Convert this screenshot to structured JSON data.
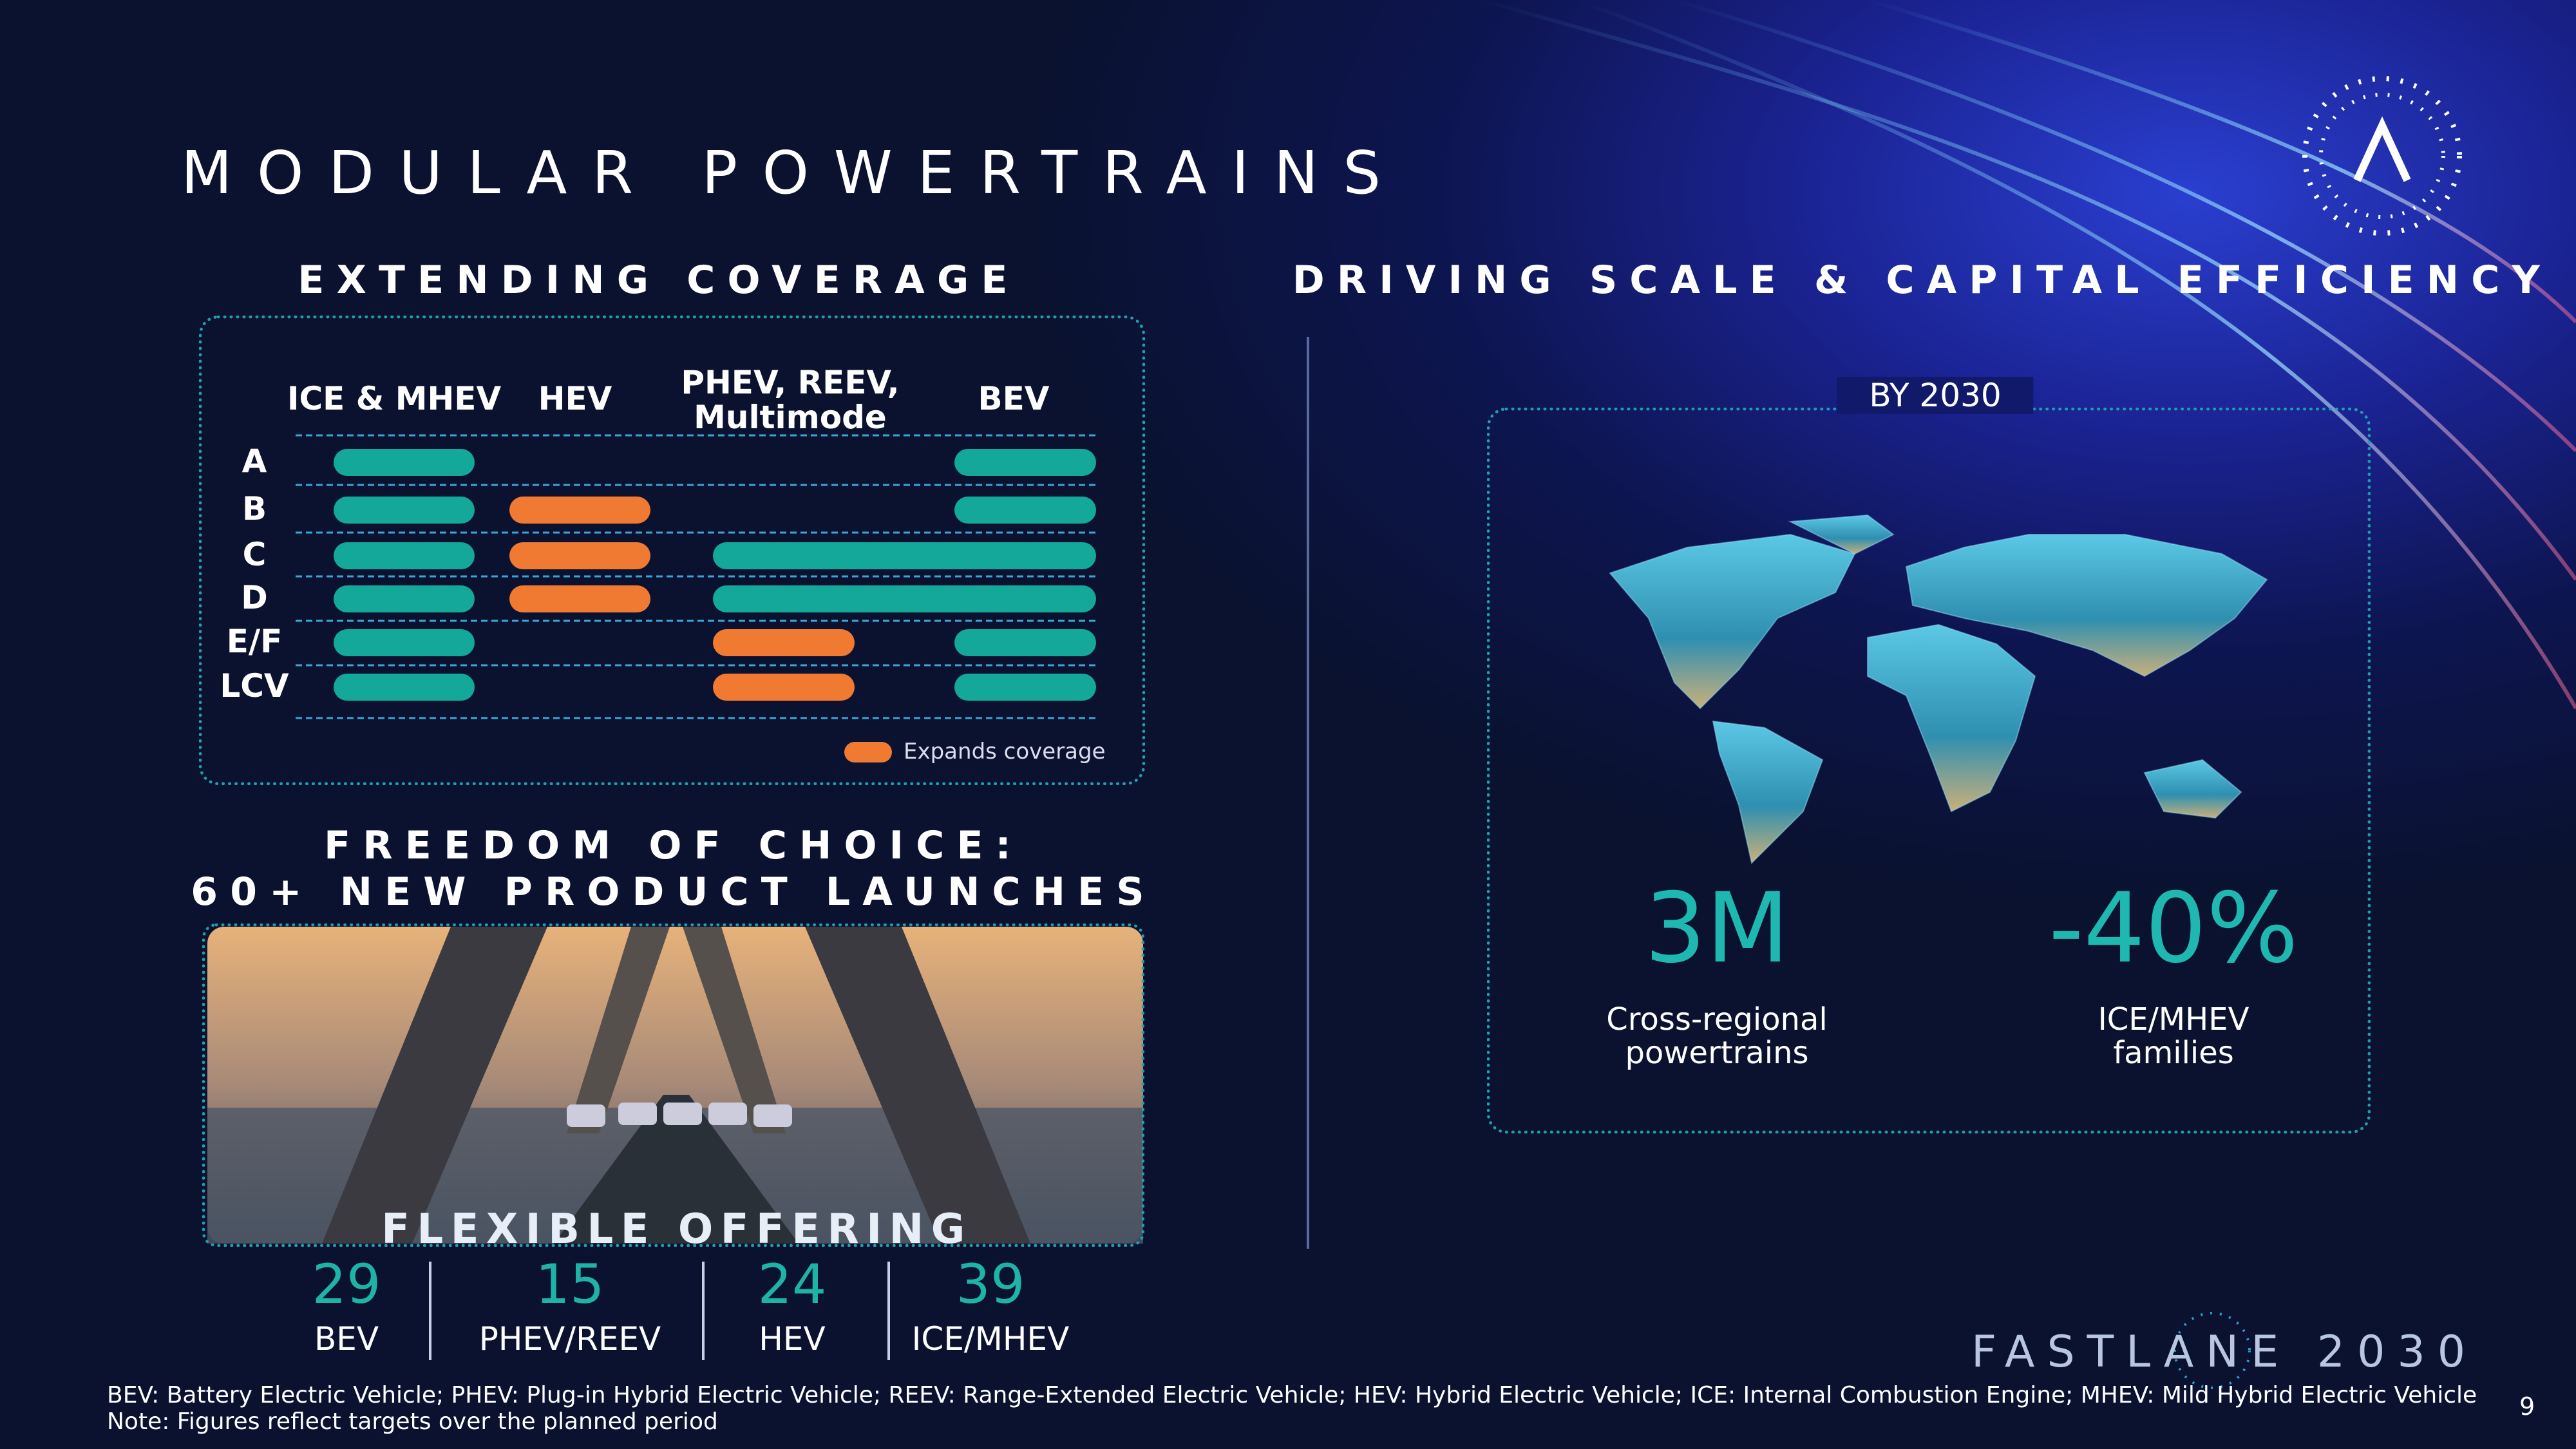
{
  "header": {
    "title": "MODULAR POWERTRAINS"
  },
  "coverage": {
    "heading": "EXTENDING COVERAGE",
    "columns": [
      "ICE & MHEV",
      "HEV",
      [
        "PHEV, REEV,",
        "Multimode"
      ],
      "BEV"
    ],
    "rows": [
      "A",
      "B",
      "C",
      "D",
      "E/F",
      "LCV"
    ],
    "legend": "Expands coverage"
  },
  "freedom": {
    "heading": [
      "FREEDOM OF CHOICE:",
      "60+ NEW PRODUCT LAUNCHES"
    ],
    "caption": "FLEXIBLE OFFERING",
    "stats": [
      {
        "value": 29,
        "label": "BEV"
      },
      {
        "value": 15,
        "label": "PHEV/REEV"
      },
      {
        "value": 24,
        "label": "HEV"
      },
      {
        "value": 39,
        "label": "ICE/MHEV"
      }
    ]
  },
  "scale": {
    "heading": "DRIVING SCALE & CAPITAL EFFICIENCY",
    "badge": "BY 2030",
    "metrics": [
      {
        "value": "3M",
        "label": [
          "Cross-regional",
          "powertrains"
        ]
      },
      {
        "value": "-40%",
        "label": [
          "ICE/MHEV",
          "families"
        ]
      }
    ]
  },
  "footer": {
    "notes": [
      "BEV: Battery Electric Vehicle; PHEV: Plug-in Hybrid Electric Vehicle; REEV: Range-Extended Electric Vehicle; HEV: Hybrid Electric Vehicle; ICE: Internal Combustion Engine; MHEV: Mild Hybrid Electric Vehicle",
      "Note: Figures reflect targets over the planned period"
    ],
    "brand": "FASTLANE 2030",
    "page": 9
  }
}
